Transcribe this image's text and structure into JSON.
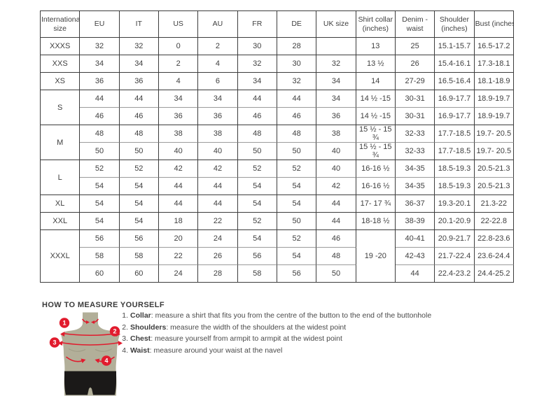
{
  "colors": {
    "accent_red": "#e11b2d",
    "mannequin": "#b2af99",
    "mannequin_shade": "#9e9b85",
    "shorts_black": "#1b1918",
    "border_dark": "#3c3c3c",
    "border_light": "#9b9b9b",
    "text": "#3f3f3f"
  },
  "table": {
    "headers": [
      "International size",
      "EU",
      "IT",
      "US",
      "AU",
      "FR",
      "DE",
      "UK size",
      "Shirt collar (inches)",
      "Denim - waist",
      "Shoulder (inches)",
      "Bust (inches)"
    ],
    "rows": [
      {
        "size": "XXXS",
        "span": 1,
        "cells": [
          "32",
          "32",
          "0",
          "2",
          "30",
          "28",
          "",
          "13",
          "25",
          "15.1-15.7",
          "16.5-17.2"
        ]
      },
      {
        "size": "XXS",
        "span": 1,
        "cells": [
          "34",
          "34",
          "2",
          "4",
          "32",
          "30",
          "32",
          "13 ½",
          "26",
          "15.4-16.1",
          "17.3-18.1"
        ]
      },
      {
        "size": "XS",
        "span": 1,
        "cells": [
          "36",
          "36",
          "4",
          "6",
          "34",
          "32",
          "34",
          "14",
          "27-29",
          "16.5-16.4",
          "18.1-18.9"
        ]
      },
      {
        "size": "S",
        "span": 2,
        "light": true,
        "cells": [
          "44",
          "44",
          "34",
          "34",
          "44",
          "44",
          "34",
          "14 ½ -15",
          "30-31",
          "16.9-17.7",
          "18.9-19.7"
        ]
      },
      {
        "sub": true,
        "cells": [
          "46",
          "46",
          "36",
          "36",
          "46",
          "46",
          "36",
          "14 ½ -15",
          "30-31",
          "16.9-17.7",
          "18.9-19.7"
        ]
      },
      {
        "size": "M",
        "span": 2,
        "light": true,
        "cells": [
          "48",
          "48",
          "38",
          "38",
          "48",
          "48",
          "38",
          "15 ½ - 15 ¾",
          "32-33",
          "17.7-18.5",
          "19.7- 20.5"
        ]
      },
      {
        "sub": true,
        "cells": [
          "50",
          "50",
          "40",
          "40",
          "50",
          "50",
          "40",
          "15 ½ - 15 ¾",
          "32-33",
          "17.7-18.5",
          "19.7- 20.5"
        ]
      },
      {
        "size": "L",
        "span": 2,
        "light": true,
        "cells": [
          "52",
          "52",
          "42",
          "42",
          "52",
          "52",
          "40",
          "16-16 ½",
          "34-35",
          "18.5-19.3",
          "20.5-21.3"
        ]
      },
      {
        "sub": true,
        "cells": [
          "54",
          "54",
          "44",
          "44",
          "54",
          "54",
          "42",
          "16-16 ½",
          "34-35",
          "18.5-19.3",
          "20.5-21.3"
        ]
      },
      {
        "size": "XL",
        "span": 1,
        "cells": [
          "54",
          "54",
          "44",
          "44",
          "54",
          "54",
          "44",
          "17- 17 ¾",
          "36-37",
          "19.3-20.1",
          "21.3-22"
        ]
      },
      {
        "size": "XXL",
        "span": 1,
        "cells": [
          "54",
          "54",
          "18",
          "22",
          "52",
          "50",
          "44",
          "18-18 ½",
          "38-39",
          "20.1-20.9",
          "22-22.8"
        ]
      },
      {
        "size": "XXXL",
        "span": 3,
        "light": true,
        "cells": [
          "56",
          "56",
          "20",
          "24",
          "54",
          "52",
          "46",
          {
            "t": "19 -20",
            "rs": 3
          },
          "40-41",
          "20.9-21.7",
          "22.8-23.6"
        ]
      },
      {
        "sub": true,
        "light": true,
        "cells": [
          "58",
          "58",
          "22",
          "26",
          "56",
          "54",
          "48",
          "42-43",
          "21.7-22.4",
          "23.6-24.4"
        ]
      },
      {
        "sub": true,
        "cells": [
          "60",
          "60",
          "24",
          "28",
          "58",
          "56",
          "50",
          "44",
          "22.4-23.2",
          "24.4-25.2"
        ]
      }
    ]
  },
  "measure": {
    "heading": "HOW TO MEASURE YOURSELF",
    "items": [
      {
        "num": "1.",
        "label": "Collar",
        "text": ": measure a shirt that fits you from the centre of the button to the end of the buttonhole"
      },
      {
        "num": "2.",
        "label": "Shoulders",
        "text": ": measure the width of the shoulders at the widest point"
      },
      {
        "num": "3.",
        "label": "Chest",
        "text": ": measure yourself from armpit to armpit at the widest point"
      },
      {
        "num": "4.",
        "label": "Waist",
        "text": ": measure around your waist at the navel"
      }
    ],
    "markers": [
      "1",
      "2",
      "3",
      "4"
    ]
  }
}
